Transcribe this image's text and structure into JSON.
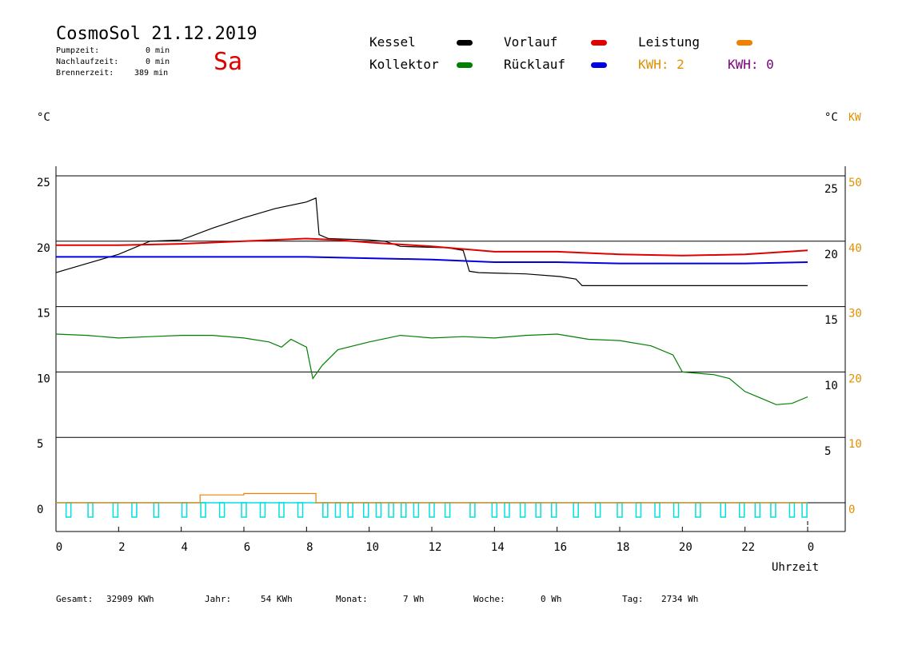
{
  "header": {
    "title": "CosmoSol 21.12.2019",
    "day": "Sa",
    "pumpzeit_label": "Pumpzeit:",
    "pumpzeit_value": "0 min",
    "nachlaufzeit_label": "Nachlaufzeit:",
    "nachlaufzeit_value": "0 min",
    "brennerzeit_label": "Brennerzeit:",
    "brennerzeit_value": "389 min"
  },
  "legend": {
    "kessel": "Kessel",
    "vorlauf": "Vorlauf",
    "leistung": "Leistung",
    "kollektor": "Kollektor",
    "ruecklauf": "Rücklauf",
    "kwh1": "KWH: 2",
    "kwh2": "KWH: 0"
  },
  "colors": {
    "kessel": "#000000",
    "vorlauf": "#e00000",
    "leistung": "#f08000",
    "kollektor": "#008000",
    "ruecklauf": "#0000e0",
    "kwh_right": "#800080",
    "pump": "#00e0e0",
    "kw_axis": "#e09000"
  },
  "footer": {
    "gesamt_label": "Gesamt:",
    "gesamt_value": "32909 KWh",
    "jahr_label": "Jahr:",
    "jahr_value": "54 KWh",
    "monat_label": "Monat:",
    "monat_value": "7 Wh",
    "woche_label": "Woche:",
    "woche_value": "0 Wh",
    "tag_label": "Tag:",
    "tag_value": "2734 Wh"
  },
  "chart_data": {
    "type": "line",
    "xlabel": "Uhrzeit",
    "left_unit": "°C",
    "right_unit": "°C",
    "right2_unit": "KW",
    "x_ticks": [
      "0",
      "2",
      "4",
      "6",
      "8",
      "10",
      "12",
      "14",
      "16",
      "18",
      "20",
      "22",
      "0"
    ],
    "left_ticks": [
      "25",
      "20",
      "15",
      "10",
      "5",
      "0"
    ],
    "right_ticks": [
      "25",
      "20",
      "15",
      "10",
      "5"
    ],
    "kw_ticks": [
      "50",
      "40",
      "30",
      "20",
      "10",
      "0"
    ],
    "series": [
      {
        "name": "Kessel",
        "points": [
          [
            0,
            17.6
          ],
          [
            1,
            18.3
          ],
          [
            2,
            19.0
          ],
          [
            3,
            20.0
          ],
          [
            4,
            20.1
          ],
          [
            5,
            21.0
          ],
          [
            6,
            21.8
          ],
          [
            7,
            22.5
          ],
          [
            8,
            23.0
          ],
          [
            8.3,
            23.3
          ],
          [
            8.4,
            20.5
          ],
          [
            8.7,
            20.2
          ],
          [
            10,
            20.1
          ],
          [
            10.5,
            20.0
          ],
          [
            11,
            19.6
          ],
          [
            12.5,
            19.5
          ],
          [
            13,
            19.3
          ],
          [
            13.2,
            17.7
          ],
          [
            13.5,
            17.6
          ],
          [
            15,
            17.5
          ],
          [
            16.1,
            17.3
          ],
          [
            16.6,
            17.1
          ],
          [
            16.8,
            16.6
          ],
          [
            18,
            16.6
          ],
          [
            20,
            16.6
          ],
          [
            22,
            16.6
          ],
          [
            24,
            16.6
          ]
        ]
      },
      {
        "name": "Vorlauf",
        "points": [
          [
            0,
            19.7
          ],
          [
            2,
            19.7
          ],
          [
            4,
            19.8
          ],
          [
            6,
            20.0
          ],
          [
            8,
            20.2
          ],
          [
            9,
            20.1
          ],
          [
            10,
            19.9
          ],
          [
            12,
            19.6
          ],
          [
            14,
            19.2
          ],
          [
            16,
            19.2
          ],
          [
            18,
            19.0
          ],
          [
            20,
            18.9
          ],
          [
            22,
            19.0
          ],
          [
            24,
            19.3
          ]
        ]
      },
      {
        "name": "Rücklauf",
        "points": [
          [
            0,
            18.8
          ],
          [
            2,
            18.8
          ],
          [
            4,
            18.8
          ],
          [
            6,
            18.8
          ],
          [
            8,
            18.8
          ],
          [
            10,
            18.7
          ],
          [
            12,
            18.6
          ],
          [
            14,
            18.4
          ],
          [
            16,
            18.4
          ],
          [
            18,
            18.3
          ],
          [
            20,
            18.3
          ],
          [
            22,
            18.3
          ],
          [
            24,
            18.4
          ]
        ]
      },
      {
        "name": "Kollektor",
        "points": [
          [
            0,
            12.9
          ],
          [
            1,
            12.8
          ],
          [
            2,
            12.6
          ],
          [
            3,
            12.7
          ],
          [
            4,
            12.8
          ],
          [
            5,
            12.8
          ],
          [
            6,
            12.6
          ],
          [
            6.8,
            12.3
          ],
          [
            7.2,
            11.9
          ],
          [
            7.5,
            12.5
          ],
          [
            8,
            11.9
          ],
          [
            8.2,
            9.5
          ],
          [
            8.5,
            10.5
          ],
          [
            9,
            11.7
          ],
          [
            10,
            12.3
          ],
          [
            11,
            12.8
          ],
          [
            12,
            12.6
          ],
          [
            13,
            12.7
          ],
          [
            14,
            12.6
          ],
          [
            15,
            12.8
          ],
          [
            16,
            12.9
          ],
          [
            17,
            12.5
          ],
          [
            18,
            12.4
          ],
          [
            19,
            12.0
          ],
          [
            19.7,
            11.3
          ],
          [
            20,
            10.0
          ],
          [
            21,
            9.8
          ],
          [
            21.5,
            9.5
          ],
          [
            22,
            8.5
          ],
          [
            22.5,
            8.0
          ],
          [
            23,
            7.5
          ],
          [
            23.5,
            7.6
          ],
          [
            24,
            8.1
          ]
        ]
      },
      {
        "name": "Leistung",
        "points": [
          [
            0,
            0
          ],
          [
            4.6,
            0
          ],
          [
            4.6,
            0.6
          ],
          [
            6,
            0.7
          ],
          [
            8.3,
            0.7
          ],
          [
            8.3,
            0
          ],
          [
            24,
            0
          ]
        ]
      }
    ],
    "pump_pulses": [
      0.4,
      1.1,
      1.9,
      2.5,
      3.2,
      4.1,
      4.7,
      5.3,
      6.0,
      6.6,
      7.2,
      7.8,
      8.6,
      9.0,
      9.4,
      9.9,
      10.3,
      10.7,
      11.1,
      11.5,
      12.0,
      12.5,
      13.3,
      14.0,
      14.4,
      14.9,
      15.4,
      15.9,
      16.6,
      17.3,
      18.0,
      18.6,
      19.2,
      19.8,
      20.5,
      21.3,
      21.9,
      22.4,
      22.9,
      23.5,
      23.9
    ],
    "xlim": [
      0,
      24
    ],
    "ylim_left": [
      -2.5,
      26
    ]
  }
}
